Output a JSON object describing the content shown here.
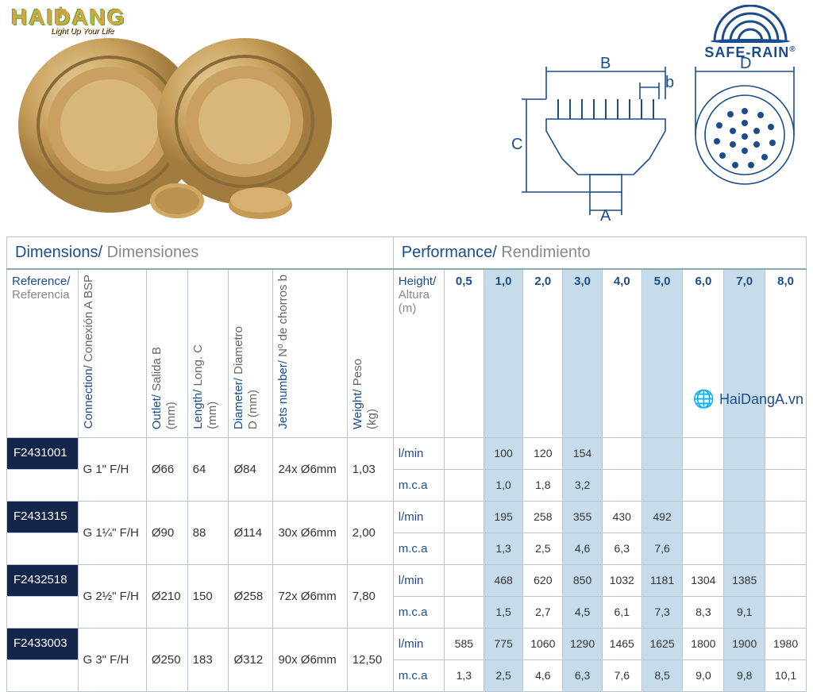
{
  "logos": {
    "haidang": {
      "name": "HAIDANG",
      "tagline": "Light Up Your Life"
    },
    "saferain": {
      "name": "SAFE-RAIN",
      "arc_color": "#1b4c8c"
    }
  },
  "watermark": "HaiDangA.vn",
  "diagram": {
    "labels": {
      "A": "A",
      "B": "B",
      "C": "C",
      "D": "D",
      "b": "b"
    },
    "stroke": "#1b4c8c"
  },
  "sections": {
    "dimensions": {
      "en": "Dimensions/",
      "es": "Dimensiones"
    },
    "performance": {
      "en": "Performance/",
      "es": "Rendimiento"
    }
  },
  "dim_columns": [
    {
      "en": "Reference/",
      "es": "Referencia",
      "rotated": false
    },
    {
      "en": "Connection/",
      "es": "Conexión A BSP",
      "unit": "",
      "rotated": true
    },
    {
      "en": "Outlet/",
      "es": "Salida B",
      "unit": "(mm)",
      "rotated": true
    },
    {
      "en": "Length/",
      "es": "Long. C",
      "unit": "(mm)",
      "rotated": true
    },
    {
      "en": "Diameter/",
      "es": "Diametro",
      "unit": "D (mm)",
      "rotated": true
    },
    {
      "en": "Jets number/",
      "es": "Nº de chorros b",
      "unit": "",
      "rotated": true
    },
    {
      "en": "Weight/",
      "es": "Peso",
      "unit": "(kg)",
      "rotated": true
    }
  ],
  "perf_height_label": {
    "en": "Height/",
    "es": "Altura",
    "unit": "(m)"
  },
  "perf_heights": [
    "0,5",
    "1,0",
    "2,0",
    "3,0",
    "4,0",
    "5,0",
    "6,0",
    "7,0",
    "8,0"
  ],
  "perf_shaded": [
    false,
    true,
    false,
    true,
    false,
    true,
    false,
    true,
    false
  ],
  "perf_row_labels": {
    "lmin": "l/min",
    "mca": "m.c.a"
  },
  "products": [
    {
      "ref": "F2431001",
      "dims": [
        "G 1\" F/H",
        "Ø66",
        "64",
        "Ø84",
        "24x Ø6mm",
        "1,03"
      ],
      "lmin": [
        "",
        "100",
        "120",
        "154",
        "",
        "",
        "",
        "",
        ""
      ],
      "mca": [
        "",
        "1,0",
        "1,8",
        "3,2",
        "",
        "",
        "",
        "",
        ""
      ]
    },
    {
      "ref": "F2431315",
      "dims": [
        "G 1¼\" F/H",
        "Ø90",
        "88",
        "Ø114",
        "30x Ø6mm",
        "2,00"
      ],
      "lmin": [
        "",
        "195",
        "258",
        "355",
        "430",
        "492",
        "",
        "",
        ""
      ],
      "mca": [
        "",
        "1,3",
        "2,5",
        "4,6",
        "6,3",
        "7,6",
        "",
        "",
        ""
      ]
    },
    {
      "ref": "F2432518",
      "dims": [
        "G 2½\" F/H",
        "Ø210",
        "150",
        "Ø258",
        "72x Ø6mm",
        "7,80"
      ],
      "lmin": [
        "",
        "468",
        "620",
        "850",
        "1032",
        "1181",
        "1304",
        "1385",
        ""
      ],
      "mca": [
        "",
        "1,5",
        "2,7",
        "4,5",
        "6,1",
        "7,3",
        "8,3",
        "9,1",
        ""
      ]
    },
    {
      "ref": "F2433003",
      "dims": [
        "G 3\" F/H",
        "Ø250",
        "183",
        "Ø312",
        "90x Ø6mm",
        "12,50"
      ],
      "lmin": [
        "585",
        "775",
        "1060",
        "1290",
        "1465",
        "1625",
        "1800",
        "1900",
        "1980"
      ],
      "mca": [
        "1,3",
        "2,5",
        "4,6",
        "6,3",
        "7,6",
        "8,5",
        "9,0",
        "9,8",
        "10,1"
      ]
    }
  ],
  "colors": {
    "brand_blue": "#1b4c8c",
    "ref_bg": "#13254a",
    "shade": "#c7dceb",
    "border": "#b8c4d0",
    "grey": "#888"
  }
}
